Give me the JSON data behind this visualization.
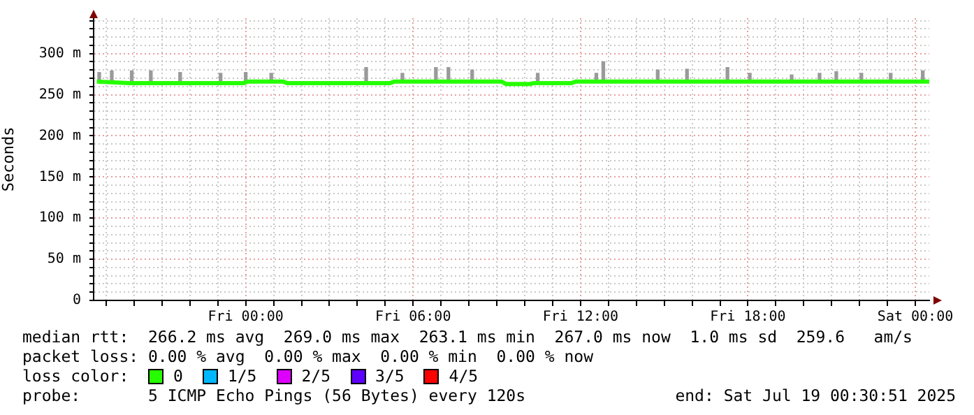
{
  "chart_data": {
    "type": "line",
    "ylabel": "Seconds",
    "legend_title": "loss color:",
    "legend": "bottom",
    "grid": true,
    "marker": "none",
    "xlim": [
      "2025-07-17T18:33",
      "2025-07-19T00:30"
    ],
    "xticks": [
      {
        "value": "2025-07-17T19:00",
        "label": null
      },
      {
        "value": "2025-07-17T20:00",
        "label": null
      },
      {
        "value": "2025-07-17T21:00",
        "label": null
      },
      {
        "value": "2025-07-17T22:00",
        "label": null
      },
      {
        "value": "2025-07-17T23:00",
        "label": null
      },
      {
        "value": "2025-07-18T00:00",
        "label": "Fri 00:00"
      },
      {
        "value": "2025-07-18T01:00",
        "label": null
      },
      {
        "value": "2025-07-18T02:00",
        "label": null
      },
      {
        "value": "2025-07-18T03:00",
        "label": null
      },
      {
        "value": "2025-07-18T04:00",
        "label": null
      },
      {
        "value": "2025-07-18T05:00",
        "label": null
      },
      {
        "value": "2025-07-18T06:00",
        "label": "Fri 06:00"
      },
      {
        "value": "2025-07-18T07:00",
        "label": null
      },
      {
        "value": "2025-07-18T08:00",
        "label": null
      },
      {
        "value": "2025-07-18T09:00",
        "label": null
      },
      {
        "value": "2025-07-18T10:00",
        "label": null
      },
      {
        "value": "2025-07-18T11:00",
        "label": null
      },
      {
        "value": "2025-07-18T12:00",
        "label": "Fri 12:00"
      },
      {
        "value": "2025-07-18T13:00",
        "label": null
      },
      {
        "value": "2025-07-18T14:00",
        "label": null
      },
      {
        "value": "2025-07-18T15:00",
        "label": null
      },
      {
        "value": "2025-07-18T16:00",
        "label": null
      },
      {
        "value": "2025-07-18T17:00",
        "label": null
      },
      {
        "value": "2025-07-18T18:00",
        "label": "Fri 18:00"
      },
      {
        "value": "2025-07-18T19:00",
        "label": null
      },
      {
        "value": "2025-07-18T20:00",
        "label": null
      },
      {
        "value": "2025-07-18T21:00",
        "label": null
      },
      {
        "value": "2025-07-18T22:00",
        "label": null
      },
      {
        "value": "2025-07-18T23:00",
        "label": null
      },
      {
        "value": "2025-07-19T00:00",
        "label": "Sat 00:00"
      }
    ],
    "ylim": [
      0,
      343
    ],
    "yticks": [
      0,
      {
        "value": 10,
        "label": null
      },
      {
        "value": 20,
        "label": null
      },
      {
        "value": 30,
        "label": null
      },
      {
        "value": 40,
        "label": null
      },
      {
        "value": 50,
        "label": "50 m"
      },
      {
        "value": 60,
        "label": null
      },
      {
        "value": 70,
        "label": null
      },
      {
        "value": 80,
        "label": null
      },
      {
        "value": 90,
        "label": null
      },
      {
        "value": 100,
        "label": "100 m"
      },
      {
        "value": 110,
        "label": null
      },
      {
        "value": 120,
        "label": null
      },
      {
        "value": 130,
        "label": null
      },
      {
        "value": 140,
        "label": null
      },
      {
        "value": 150,
        "label": "150 m"
      },
      {
        "value": 160,
        "label": null
      },
      {
        "value": 170,
        "label": null
      },
      {
        "value": 180,
        "label": null
      },
      {
        "value": 190,
        "label": null
      },
      {
        "value": 200,
        "label": "200 m"
      },
      {
        "value": 210,
        "label": null
      },
      {
        "value": 220,
        "label": null
      },
      {
        "value": 230,
        "label": null
      },
      {
        "value": 240,
        "label": null
      },
      {
        "value": 250,
        "label": "250 m"
      },
      {
        "value": 260,
        "label": null
      },
      {
        "value": 270,
        "label": null
      },
      {
        "value": 280,
        "label": null
      },
      {
        "value": 290,
        "label": null
      },
      {
        "value": 300,
        "label": "300 m"
      },
      {
        "value": 310,
        "label": null
      },
      {
        "value": 320,
        "label": null
      },
      {
        "value": 330,
        "label": null
      },
      {
        "value": 340,
        "label": null
      }
    ],
    "x": [
      "2025-07-17T18:40",
      "2025-07-17T19:50",
      "2025-07-17T23:55",
      "2025-07-18T00:05",
      "2025-07-18T01:20",
      "2025-07-18T01:30",
      "2025-07-18T05:10",
      "2025-07-18T05:20",
      "2025-07-18T09:10",
      "2025-07-18T09:20",
      "2025-07-18T10:10",
      "2025-07-18T10:20",
      "2025-07-18T11:40",
      "2025-07-18T11:50",
      "2025-07-19T00:30"
    ],
    "series": [
      {
        "type": "bar",
        "color": "#9a9a9a",
        "x": [
          "2025-07-17T18:45",
          "2025-07-17T19:12",
          "2025-07-17T19:55",
          "2025-07-17T20:36",
          "2025-07-17T21:39",
          "2025-07-17T23:06",
          "2025-07-18T00:00",
          "2025-07-18T00:55",
          "2025-07-18T04:19",
          "2025-07-18T05:37",
          "2025-07-18T06:49",
          "2025-07-18T07:16",
          "2025-07-18T08:07",
          "2025-07-18T10:28",
          "2025-07-18T12:34",
          "2025-07-18T12:49",
          "2025-07-18T14:46",
          "2025-07-18T15:49",
          "2025-07-18T17:16",
          "2025-07-18T18:04",
          "2025-07-18T19:34",
          "2025-07-18T20:34",
          "2025-07-18T21:10",
          "2025-07-18T22:04",
          "2025-07-18T23:07",
          "2025-07-19T00:16"
        ],
        "base": [
          266,
          266,
          264,
          264,
          264,
          264,
          266,
          266,
          264,
          266,
          266,
          266,
          266,
          264,
          266,
          266,
          266,
          266,
          266,
          266,
          266,
          266,
          266,
          266,
          266,
          266
        ],
        "values": [
          11,
          13,
          15,
          15,
          13,
          12,
          11,
          10,
          19,
          10,
          17,
          17,
          14,
          12,
          10,
          24,
          14,
          15,
          17,
          10,
          8,
          10,
          12,
          10,
          10,
          13
        ]
      },
      {
        "name": "0",
        "color": "#26ff00",
        "values": [
          266,
          264,
          264,
          266,
          266,
          264,
          264,
          266,
          266,
          263,
          263,
          264,
          264,
          266,
          266
        ]
      },
      {
        "name": "1/5",
        "color": "#00b8ff",
        "values": [
          null,
          null,
          null,
          null,
          null,
          null,
          null,
          null,
          null,
          null,
          null,
          null,
          null,
          null,
          null
        ]
      },
      {
        "name": "2/5",
        "color": "#dd00ff",
        "values": [
          null,
          null,
          null,
          null,
          null,
          null,
          null,
          null,
          null,
          null,
          null,
          null,
          null,
          null,
          null
        ]
      },
      {
        "name": "3/5",
        "color": "#5e00ff",
        "values": [
          null,
          null,
          null,
          null,
          null,
          null,
          null,
          null,
          null,
          null,
          null,
          null,
          null,
          null,
          null
        ]
      },
      {
        "name": "4/5",
        "color": "#ff0000",
        "values": [
          null,
          null,
          null,
          null,
          null,
          null,
          null,
          null,
          null,
          null,
          null,
          null,
          null,
          null,
          null
        ]
      }
    ],
    "annotations": [
      "median rtt:  266.2 ms avg  269.0 ms max  263.1 ms min  267.0 ms now  1.0 ms sd  259.6   am/s",
      "packet loss: 0.00 % avg  0.00 % max  0.00 % min  0.00 % now",
      "probe:       5 ICMP Echo Pings (56 Bytes) every 120s",
      "end: Sat Jul 19 00:30:51 2025"
    ]
  }
}
